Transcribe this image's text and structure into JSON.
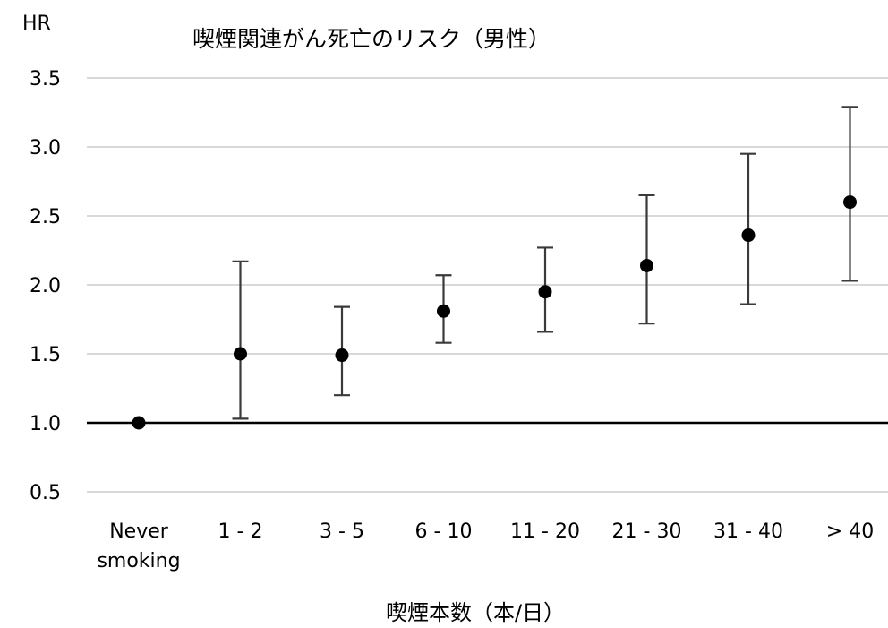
{
  "chart_data": {
    "type": "scatter",
    "title": "喫煙関連がん死亡のリスク（男性）",
    "ylabel": "HR",
    "xlabel": "喫煙本数（本/日）",
    "categories": [
      "Never smoking",
      "1 - 2",
      "3 - 5",
      "6 - 10",
      "11 - 20",
      "21 - 30",
      "31 - 40",
      "> 40"
    ],
    "category_lines": [
      [
        "Never",
        "smoking"
      ],
      [
        "1 - 2"
      ],
      [
        "3 - 5"
      ],
      [
        "6 - 10"
      ],
      [
        "11 - 20"
      ],
      [
        "21 - 30"
      ],
      [
        "31 - 40"
      ],
      [
        "> 40"
      ]
    ],
    "values": [
      1.0,
      1.5,
      1.49,
      1.81,
      1.95,
      2.14,
      2.36,
      2.6
    ],
    "ci_lower": [
      null,
      1.03,
      1.2,
      1.58,
      1.66,
      1.72,
      1.86,
      2.03
    ],
    "ci_upper": [
      null,
      2.17,
      1.84,
      2.07,
      2.27,
      2.65,
      2.95,
      3.29
    ],
    "ylim": [
      0.5,
      3.5
    ],
    "yticks": [
      "0.5",
      "1.0",
      "1.5",
      "2.0",
      "2.5",
      "3.0",
      "3.5"
    ],
    "reference_line": 1.0,
    "grid": true,
    "colors": {
      "marker": "#000000",
      "errorbar": "#3a3a3a",
      "grid": "#d9d9d9",
      "reference": "#000000"
    }
  }
}
